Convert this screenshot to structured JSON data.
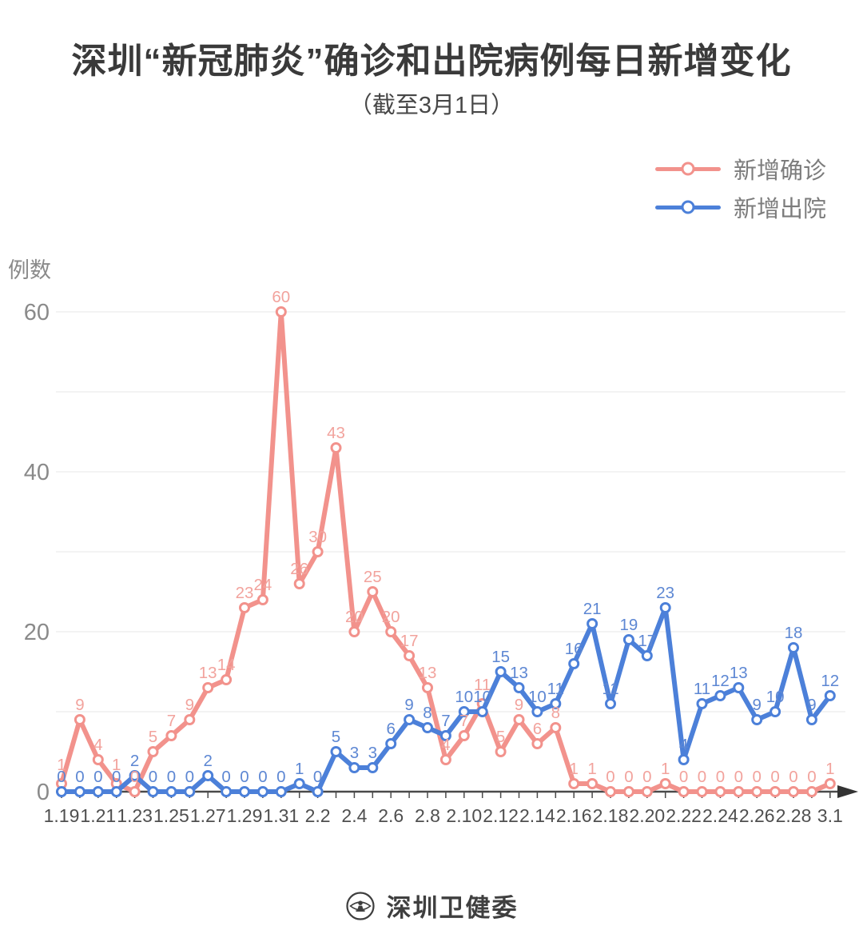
{
  "title": "深圳“新冠肺炎”确诊和出院病例每日新增变化",
  "subtitle": "（截至3月1日）",
  "y_axis_title": "例数",
  "legend": {
    "items": [
      {
        "label": "新增确诊",
        "color": "#F2928C"
      },
      {
        "label": "新增出院",
        "color": "#4C80D9"
      }
    ]
  },
  "footer": {
    "org_name": "深圳卫健委"
  },
  "colors": {
    "confirmed_line": "#F2928C",
    "confirmed_label": "#F2A39D",
    "discharged_line": "#4C80D9",
    "discharged_label": "#5D87D3",
    "grid": "#e7e7e7",
    "axis": "#4a4a4a",
    "y_tick_text": "#8a8a8a",
    "x_tick_text": "#4f4f4f"
  },
  "chart_data": {
    "type": "line",
    "title": "深圳“新冠肺炎”确诊和出院病例每日新增变化（截至3月1日）",
    "ylabel": "例数",
    "ylim": [
      0,
      60
    ],
    "grid_interval": 10,
    "grid": true,
    "legend_position": "top-right",
    "y_tick_labels": [
      0,
      20,
      40,
      60
    ],
    "categories": [
      "1.19",
      "1.20",
      "1.21",
      "1.22",
      "1.23",
      "1.24",
      "1.25",
      "1.26",
      "1.27",
      "1.28",
      "1.29",
      "1.30",
      "1.31",
      "2.1",
      "2.2",
      "2.3",
      "2.4",
      "2.5",
      "2.6",
      "2.7",
      "2.8",
      "2.9",
      "2.10",
      "2.11",
      "2.12",
      "2.13",
      "2.14",
      "2.15",
      "2.16",
      "2.17",
      "2.18",
      "2.19",
      "2.20",
      "2.21",
      "2.22",
      "2.23",
      "2.24",
      "2.25",
      "2.26",
      "2.27",
      "2.28",
      "2.29",
      "3.1"
    ],
    "x_tick_labels": [
      "1.19",
      "1.21",
      "1.23",
      "1.25",
      "1.27",
      "1.29",
      "1.31",
      "2.2",
      "2.4",
      "2.6",
      "2.8",
      "2.10",
      "2.12",
      "2.14",
      "2.16",
      "2.18",
      "2.20",
      "2.22",
      "2.24",
      "2.26",
      "2.28",
      "3.1"
    ],
    "series": [
      {
        "name": "新增确诊",
        "color": "#F2928C",
        "values": [
          1,
          9,
          4,
          1,
          0,
          5,
          7,
          9,
          13,
          14,
          23,
          24,
          60,
          26,
          30,
          43,
          20,
          25,
          20,
          17,
          13,
          4,
          7,
          11,
          5,
          9,
          6,
          8,
          1,
          1,
          0,
          0,
          0,
          1,
          0,
          0,
          0,
          0,
          0,
          0,
          0,
          0,
          1
        ]
      },
      {
        "name": "新增出院",
        "color": "#4C80D9",
        "values": [
          0,
          0,
          0,
          0,
          2,
          0,
          0,
          0,
          2,
          0,
          0,
          0,
          0,
          1,
          0,
          5,
          3,
          3,
          6,
          9,
          8,
          7,
          10,
          10,
          15,
          13,
          10,
          11,
          16,
          21,
          11,
          19,
          17,
          23,
          4,
          11,
          12,
          13,
          9,
          10,
          18,
          9,
          12
        ]
      }
    ]
  }
}
